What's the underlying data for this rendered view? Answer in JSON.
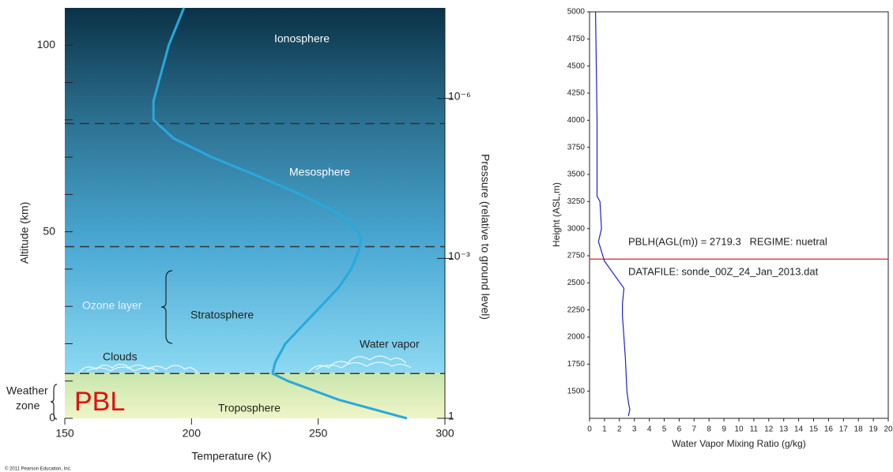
{
  "chart_data": [
    {
      "type": "line",
      "x_label": "Temperature (K)",
      "y_label": "Altitude (km)",
      "y2_label": "Pressure (relative to ground level)",
      "x": [
        285,
        258,
        238,
        232,
        233,
        237,
        244,
        251,
        258,
        263,
        266,
        267,
        266,
        258,
        243,
        226,
        208,
        193,
        185,
        185,
        187,
        189,
        191,
        194,
        197
      ],
      "values": [
        0,
        5,
        10,
        12,
        15,
        20,
        25,
        30,
        35,
        40,
        45,
        48,
        50,
        55,
        60,
        65,
        70,
        75,
        80,
        85,
        90,
        95,
        100,
        105,
        110
      ],
      "color": "#29a8dc",
      "xlim": [
        150,
        300
      ],
      "xticks": [
        150,
        200,
        250,
        300
      ],
      "ylim": [
        0,
        110
      ],
      "yticks": [
        0,
        50,
        100
      ],
      "minor_yticks": [
        10,
        20,
        30,
        40,
        60,
        70,
        80,
        90
      ],
      "y2lim": [
        1,
        2e-08
      ],
      "y2log": true,
      "y2ticks": [
        {
          "value": 1e-06,
          "label": "10⁻⁶"
        },
        {
          "value": 0.001,
          "label": "10⁻³"
        },
        1
      ],
      "boundaries": [
        12,
        46,
        79
      ],
      "annotations": [
        "Ionosphere",
        "Mesosphere",
        "Ozone layer",
        "Stratosphere",
        "Clouds",
        "Water vapor",
        "Weather",
        "zone",
        "PBL",
        "Troposphere"
      ],
      "copyright": "© 2011 Pearson Education, Inc."
    },
    {
      "type": "line",
      "x_label": "Water Vapor Mixing Ratio (g/kg)",
      "y_label": "Height (ASL,m)",
      "x": [
        2.6,
        2.7,
        2.6,
        2.5,
        2.4,
        2.3,
        2.2,
        2.2,
        2.3,
        1.0,
        0.6,
        0.8,
        0.7,
        0.5,
        0.5,
        0.4
      ],
      "values": [
        1270,
        1330,
        1400,
        1500,
        1800,
        2000,
        2200,
        2300,
        2450,
        2700,
        2880,
        3000,
        3250,
        3300,
        4000,
        5000
      ],
      "color": "#2020cc",
      "xlim": [
        0,
        20
      ],
      "xticks": [
        0,
        1,
        2,
        3,
        4,
        5,
        6,
        7,
        8,
        9,
        10,
        11,
        12,
        13,
        14,
        15,
        16,
        17,
        18,
        19,
        20
      ],
      "ylim": [
        1250,
        5000
      ],
      "yticks": [
        1500,
        1750,
        2000,
        2250,
        2500,
        2750,
        3000,
        3250,
        3500,
        3750,
        4000,
        4250,
        4500,
        4750,
        5000
      ],
      "hline": 2719.3,
      "hline_color": "#e02020",
      "annotations": [
        "PBLH(AGL(m)) = 2719.3   REGIME: nuetral",
        "DATAFILE: sonde_00Z_24_Jan_2013.dat"
      ]
    }
  ]
}
